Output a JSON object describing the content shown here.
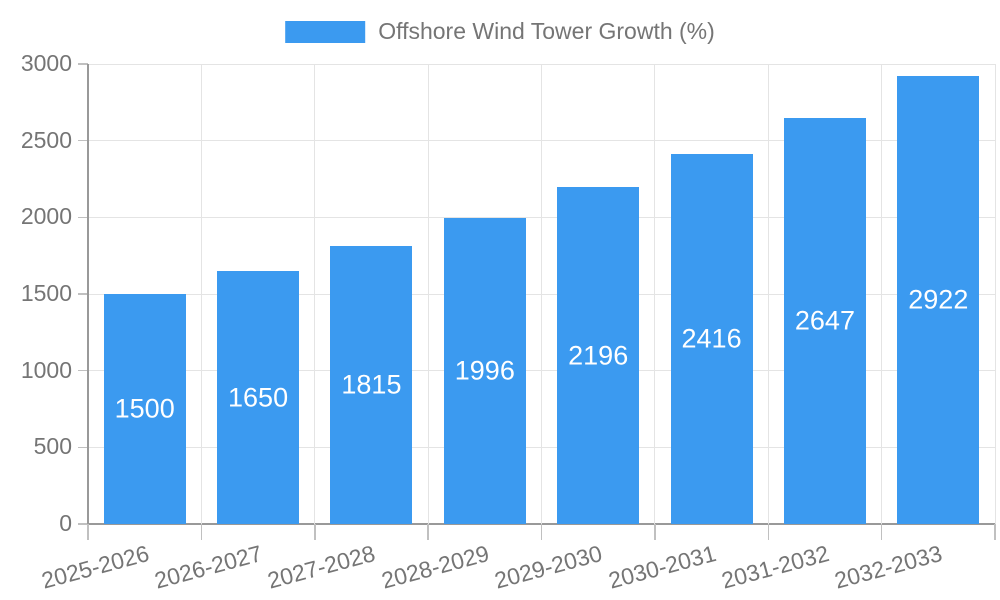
{
  "legend": {
    "label": "Offshore Wind Tower Growth (%)"
  },
  "colors": {
    "bar": "#3B9AF0",
    "axis_text": "#757575",
    "grid_line": "#E4E4E4",
    "axis_line": "#999999",
    "tick_mark": "#C0C0C0",
    "value_label": "#FFFFFF",
    "background": "#FFFFFF"
  },
  "chart_data": {
    "type": "bar",
    "title": "Offshore Wind Tower Growth (%)",
    "categories": [
      "2025-2026",
      "2026-2027",
      "2027-2028",
      "2028-2029",
      "2029-2030",
      "2030-2031",
      "2031-2032",
      "2032-2033"
    ],
    "values": [
      1500,
      1650,
      1815,
      1996,
      2196,
      2416,
      2647,
      2922
    ],
    "xlabel": "",
    "ylabel": "",
    "ylim": [
      0,
      3000
    ],
    "yticks": [
      0,
      500,
      1000,
      1500,
      2000,
      2500,
      3000
    ],
    "grid": "horizontal and vertical light gray lines",
    "legend_position": "top-center",
    "bar_label_position": "inside-center",
    "x_label_rotation_deg": -15
  }
}
